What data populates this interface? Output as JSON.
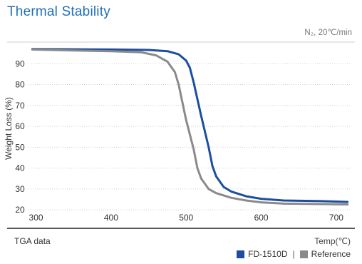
{
  "title": "Thermal Stability",
  "condition": "N₂, 20℃/min",
  "footer": {
    "section_label": "TGA data",
    "x_unit_label": "Temp(℃)"
  },
  "legend_separator": "|",
  "colors": {
    "title": "#1f6fb6",
    "series_fd1510d": "#1c4e9f",
    "series_reference": "#8a8a8a",
    "grid": "#d0d0d0",
    "axis": "#222222"
  },
  "chart_data": {
    "type": "line",
    "title": "",
    "xlabel": "",
    "ylabel": "Weight Loss (%)",
    "xlim": [
      290,
      720
    ],
    "ylim": [
      18,
      100
    ],
    "xticks": [
      300,
      400,
      500,
      600,
      700
    ],
    "yticks": [
      20,
      30,
      40,
      50,
      60,
      70,
      80,
      90
    ],
    "grid": "horizontal, dotted",
    "legend_position": "bottom-right",
    "series": [
      {
        "name": "FD-1510D",
        "color": "#1c4e9f",
        "points": [
          [
            295,
            97.0
          ],
          [
            350,
            96.9
          ],
          [
            400,
            96.8
          ],
          [
            450,
            96.6
          ],
          [
            475,
            96.0
          ],
          [
            490,
            94.5
          ],
          [
            500,
            91.5
          ],
          [
            505,
            88.0
          ],
          [
            510,
            81.0
          ],
          [
            520,
            65.0
          ],
          [
            530,
            50.0
          ],
          [
            535,
            41.0
          ],
          [
            540,
            36.0
          ],
          [
            550,
            31.0
          ],
          [
            560,
            28.8
          ],
          [
            580,
            26.5
          ],
          [
            600,
            25.3
          ],
          [
            630,
            24.5
          ],
          [
            680,
            24.2
          ],
          [
            715,
            23.8
          ]
        ]
      },
      {
        "name": "Reference",
        "color": "#8a8a8a",
        "points": [
          [
            295,
            96.8
          ],
          [
            350,
            96.3
          ],
          [
            400,
            96.0
          ],
          [
            440,
            95.5
          ],
          [
            460,
            94.0
          ],
          [
            475,
            91.0
          ],
          [
            485,
            86.0
          ],
          [
            490,
            80.0
          ],
          [
            500,
            63.0
          ],
          [
            510,
            49.0
          ],
          [
            515,
            40.0
          ],
          [
            520,
            35.0
          ],
          [
            530,
            30.0
          ],
          [
            540,
            28.0
          ],
          [
            560,
            25.8
          ],
          [
            580,
            24.5
          ],
          [
            600,
            23.6
          ],
          [
            630,
            23.0
          ],
          [
            680,
            22.8
          ],
          [
            715,
            22.6
          ]
        ]
      }
    ]
  }
}
